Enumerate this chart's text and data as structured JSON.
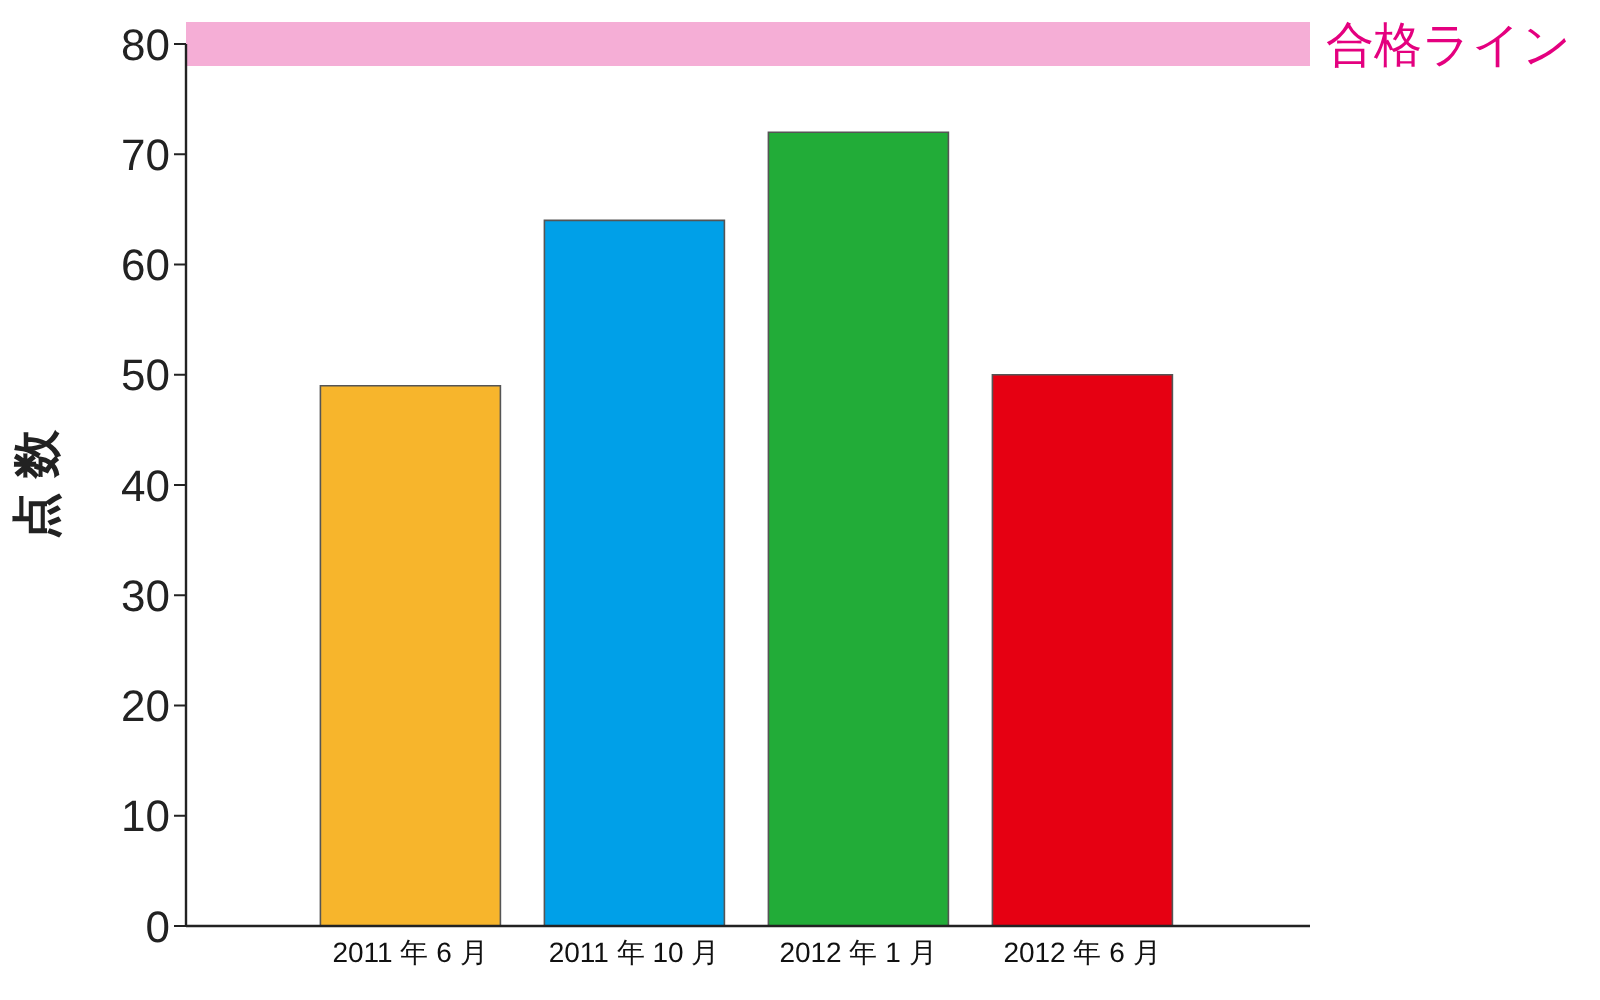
{
  "chart_data": {
    "type": "bar",
    "ylabel": "点 数",
    "categories": [
      "2011 年 6 月",
      "2011 年 10 月",
      "2012 年 1 月",
      "2012 年 6 月"
    ],
    "values": [
      49,
      64,
      72,
      50
    ],
    "colors": [
      "#f7b52c",
      "#00a0e8",
      "#22ac38",
      "#e60012"
    ],
    "ylim": [
      0,
      80
    ],
    "yticks": [
      0,
      10,
      20,
      30,
      40,
      50,
      60,
      70,
      80
    ],
    "ref_lines": [
      {
        "axis": "y",
        "value": 80,
        "label": "合格ライン",
        "color": "#f5aed6"
      }
    ]
  }
}
